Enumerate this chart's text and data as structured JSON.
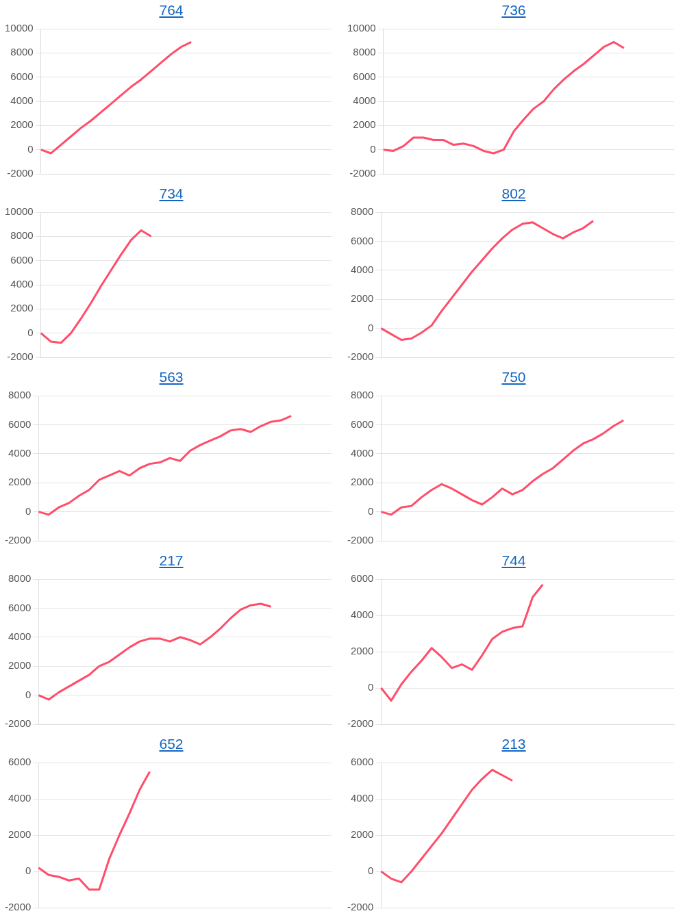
{
  "chart_data": [
    {
      "type": "line",
      "title": "764",
      "categories": [
        null,
        null,
        null,
        null,
        null,
        null,
        null,
        null,
        null,
        null,
        null,
        null,
        null,
        null,
        null,
        null,
        null,
        null,
        null,
        null,
        null,
        null,
        null,
        null,
        null,
        null,
        null,
        null,
        null,
        null
      ],
      "series": [
        {
          "color": "#ff4d6a",
          "values": [
            0,
            -300,
            400,
            1100,
            1800,
            2400,
            3100,
            3800,
            4500,
            5200,
            5800,
            6500,
            7200,
            7900,
            8500,
            8900,
            null,
            null,
            null,
            null,
            null,
            null,
            null,
            null,
            null,
            null,
            null,
            null,
            null,
            null
          ]
        }
      ],
      "ylim": [
        -2000,
        10000
      ],
      "yticks": [
        -2000,
        0,
        2000,
        4000,
        6000,
        8000,
        10000
      ],
      "grid": "y",
      "legend": false,
      "marker": "none",
      "tick_labels": "y"
    },
    {
      "type": "line",
      "title": "736",
      "categories": [
        null,
        null,
        null,
        null,
        null,
        null,
        null,
        null,
        null,
        null,
        null,
        null,
        null,
        null,
        null,
        null,
        null,
        null,
        null,
        null,
        null,
        null,
        null,
        null,
        null,
        null,
        null,
        null,
        null,
        null
      ],
      "series": [
        {
          "color": "#ff4d6a",
          "values": [
            0,
            -100,
            300,
            1000,
            1000,
            800,
            800,
            400,
            500,
            300,
            -100,
            -300,
            0,
            1500,
            2500,
            3400,
            4000,
            5000,
            5800,
            6500,
            7100,
            7800,
            8500,
            8900,
            8400,
            null,
            null,
            null,
            null,
            null
          ]
        }
      ],
      "ylim": [
        -2000,
        10000
      ],
      "yticks": [
        -2000,
        0,
        2000,
        4000,
        6000,
        8000,
        10000
      ],
      "grid": "y",
      "legend": false,
      "marker": "none",
      "tick_labels": "y"
    },
    {
      "type": "line",
      "title": "734",
      "categories": [
        null,
        null,
        null,
        null,
        null,
        null,
        null,
        null,
        null,
        null,
        null,
        null,
        null,
        null,
        null,
        null,
        null,
        null,
        null,
        null,
        null,
        null,
        null,
        null,
        null,
        null,
        null,
        null,
        null,
        null
      ],
      "series": [
        {
          "color": "#ff4d6a",
          "values": [
            0,
            -700,
            -800,
            0,
            1200,
            2500,
            3900,
            5200,
            6500,
            7700,
            8500,
            8000,
            null,
            null,
            null,
            null,
            null,
            null,
            null,
            null,
            null,
            null,
            null,
            null,
            null,
            null,
            null,
            null,
            null,
            null
          ]
        }
      ],
      "ylim": [
        -2000,
        10000
      ],
      "yticks": [
        -2000,
        0,
        2000,
        4000,
        6000,
        8000,
        10000
      ],
      "grid": "y",
      "legend": false,
      "marker": "none",
      "tick_labels": "y"
    },
    {
      "type": "line",
      "title": "802",
      "categories": [
        null,
        null,
        null,
        null,
        null,
        null,
        null,
        null,
        null,
        null,
        null,
        null,
        null,
        null,
        null,
        null,
        null,
        null,
        null,
        null,
        null,
        null,
        null,
        null,
        null,
        null,
        null,
        null,
        null,
        null
      ],
      "series": [
        {
          "color": "#ff4d6a",
          "values": [
            0,
            -400,
            -800,
            -700,
            -300,
            200,
            1200,
            2100,
            3000,
            3900,
            4700,
            5500,
            6200,
            6800,
            7200,
            7300,
            6900,
            6500,
            6200,
            6600,
            6900,
            7400,
            null,
            null,
            null,
            null,
            null,
            null,
            null,
            null
          ]
        }
      ],
      "ylim": [
        -2000,
        8000
      ],
      "yticks": [
        -2000,
        0,
        2000,
        4000,
        6000,
        8000
      ],
      "grid": "y",
      "legend": false,
      "marker": "none",
      "tick_labels": "y"
    },
    {
      "type": "line",
      "title": "563",
      "categories": [
        null,
        null,
        null,
        null,
        null,
        null,
        null,
        null,
        null,
        null,
        null,
        null,
        null,
        null,
        null,
        null,
        null,
        null,
        null,
        null,
        null,
        null,
        null,
        null,
        null,
        null,
        null,
        null,
        null,
        null
      ],
      "series": [
        {
          "color": "#ff4d6a",
          "values": [
            0,
            -200,
            300,
            600,
            1100,
            1500,
            2200,
            2500,
            2800,
            2500,
            3000,
            3300,
            3400,
            3700,
            3500,
            4200,
            4600,
            4900,
            5200,
            5600,
            5700,
            5500,
            5900,
            6200,
            6300,
            6600,
            null,
            null,
            null,
            null
          ]
        }
      ],
      "ylim": [
        -2000,
        8000
      ],
      "yticks": [
        -2000,
        0,
        2000,
        4000,
        6000,
        8000
      ],
      "grid": "y",
      "legend": false,
      "marker": "none",
      "tick_labels": "y"
    },
    {
      "type": "line",
      "title": "750",
      "categories": [
        null,
        null,
        null,
        null,
        null,
        null,
        null,
        null,
        null,
        null,
        null,
        null,
        null,
        null,
        null,
        null,
        null,
        null,
        null,
        null,
        null,
        null,
        null,
        null,
        null,
        null,
        null,
        null,
        null,
        null
      ],
      "series": [
        {
          "color": "#ff4d6a",
          "values": [
            0,
            -200,
            300,
            400,
            1000,
            1500,
            1900,
            1600,
            1200,
            800,
            500,
            1000,
            1600,
            1200,
            1500,
            2100,
            2600,
            3000,
            3600,
            4200,
            4700,
            5000,
            5400,
            5900,
            6300,
            null,
            null,
            null,
            null,
            null
          ]
        }
      ],
      "ylim": [
        -2000,
        8000
      ],
      "yticks": [
        -2000,
        0,
        2000,
        4000,
        6000,
        8000
      ],
      "grid": "y",
      "legend": false,
      "marker": "none",
      "tick_labels": "y"
    },
    {
      "type": "line",
      "title": "217",
      "categories": [
        null,
        null,
        null,
        null,
        null,
        null,
        null,
        null,
        null,
        null,
        null,
        null,
        null,
        null,
        null,
        null,
        null,
        null,
        null,
        null,
        null,
        null,
        null,
        null,
        null,
        null,
        null,
        null,
        null,
        null
      ],
      "series": [
        {
          "color": "#ff4d6a",
          "values": [
            0,
            -300,
            200,
            600,
            1000,
            1400,
            2000,
            2300,
            2800,
            3300,
            3700,
            3900,
            3900,
            3700,
            4000,
            3800,
            3500,
            4000,
            4600,
            5300,
            5900,
            6200,
            6300,
            6100,
            null,
            null,
            null,
            null,
            null,
            null
          ]
        }
      ],
      "ylim": [
        -2000,
        8000
      ],
      "yticks": [
        -2000,
        0,
        2000,
        4000,
        6000,
        8000
      ],
      "grid": "y",
      "legend": false,
      "marker": "none",
      "tick_labels": "y"
    },
    {
      "type": "line",
      "title": "744",
      "categories": [
        null,
        null,
        null,
        null,
        null,
        null,
        null,
        null,
        null,
        null,
        null,
        null,
        null,
        null,
        null,
        null,
        null,
        null,
        null,
        null,
        null,
        null,
        null,
        null,
        null,
        null,
        null,
        null,
        null,
        null
      ],
      "series": [
        {
          "color": "#ff4d6a",
          "values": [
            0,
            -700,
            200,
            900,
            1500,
            2200,
            1700,
            1100,
            1300,
            1000,
            1800,
            2700,
            3100,
            3300,
            3400,
            5000,
            5700,
            null,
            null,
            null,
            null,
            null,
            null,
            null,
            null,
            null,
            null,
            null,
            null,
            null
          ]
        }
      ],
      "ylim": [
        -2000,
        6000
      ],
      "yticks": [
        -2000,
        0,
        2000,
        4000,
        6000
      ],
      "grid": "y",
      "legend": false,
      "marker": "none",
      "tick_labels": "y"
    },
    {
      "type": "line",
      "title": "652",
      "categories": [
        null,
        null,
        null,
        null,
        null,
        null,
        null,
        null,
        null,
        null,
        null,
        null,
        null,
        null,
        null,
        null,
        null,
        null,
        null,
        null,
        null,
        null,
        null,
        null,
        null,
        null,
        null,
        null,
        null,
        null
      ],
      "series": [
        {
          "color": "#ff4d6a",
          "values": [
            200,
            -200,
            -300,
            -500,
            -400,
            -1000,
            -1000,
            700,
            2000,
            3200,
            4500,
            5500,
            null,
            null,
            null,
            null,
            null,
            null,
            null,
            null,
            null,
            null,
            null,
            null,
            null,
            null,
            null,
            null,
            null,
            null
          ]
        }
      ],
      "ylim": [
        -2000,
        6000
      ],
      "yticks": [
        -2000,
        0,
        2000,
        4000,
        6000
      ],
      "grid": "y",
      "legend": false,
      "marker": "none",
      "tick_labels": "y"
    },
    {
      "type": "line",
      "title": "213",
      "categories": [
        null,
        null,
        null,
        null,
        null,
        null,
        null,
        null,
        null,
        null,
        null,
        null,
        null,
        null,
        null,
        null,
        null,
        null,
        null,
        null,
        null,
        null,
        null,
        null,
        null,
        null,
        null,
        null,
        null,
        null
      ],
      "series": [
        {
          "color": "#ff4d6a",
          "values": [
            0,
            -400,
            -600,
            0,
            700,
            1400,
            2100,
            2900,
            3700,
            4500,
            5100,
            5600,
            5300,
            5000,
            null,
            null,
            null,
            null,
            null,
            null,
            null,
            null,
            null,
            null,
            null,
            null,
            null,
            null,
            null,
            null
          ]
        }
      ],
      "ylim": [
        -2000,
        6000
      ],
      "yticks": [
        -2000,
        0,
        2000,
        4000,
        6000
      ],
      "grid": "y",
      "legend": false,
      "marker": "none",
      "tick_labels": "y"
    }
  ]
}
